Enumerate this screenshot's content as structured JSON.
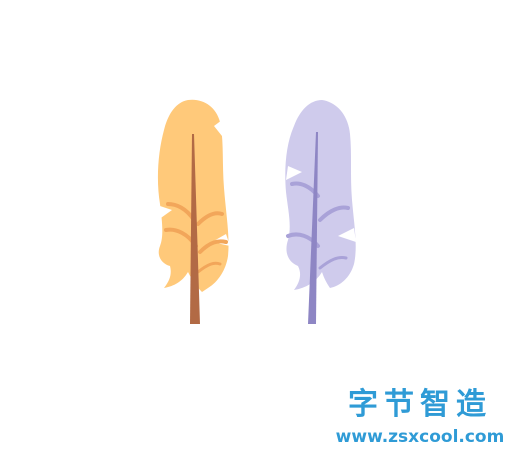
{
  "feathers": [
    {
      "name": "orange-feather",
      "vane_color": "#FFC97A",
      "vane_light_color": "#FFD89C",
      "vein_color": "#F2A65A",
      "shaft_color": "#B26A45"
    },
    {
      "name": "purple-feather",
      "vane_color": "#CFCBEC",
      "vane_light_color": "#DCD9F2",
      "vein_color": "#A9A2D8",
      "shaft_color": "#8E86C4"
    }
  ],
  "watermark": {
    "brand_text": "字节智造",
    "url_text": "www.zsxcool.com",
    "color": "#2F9BD6"
  }
}
